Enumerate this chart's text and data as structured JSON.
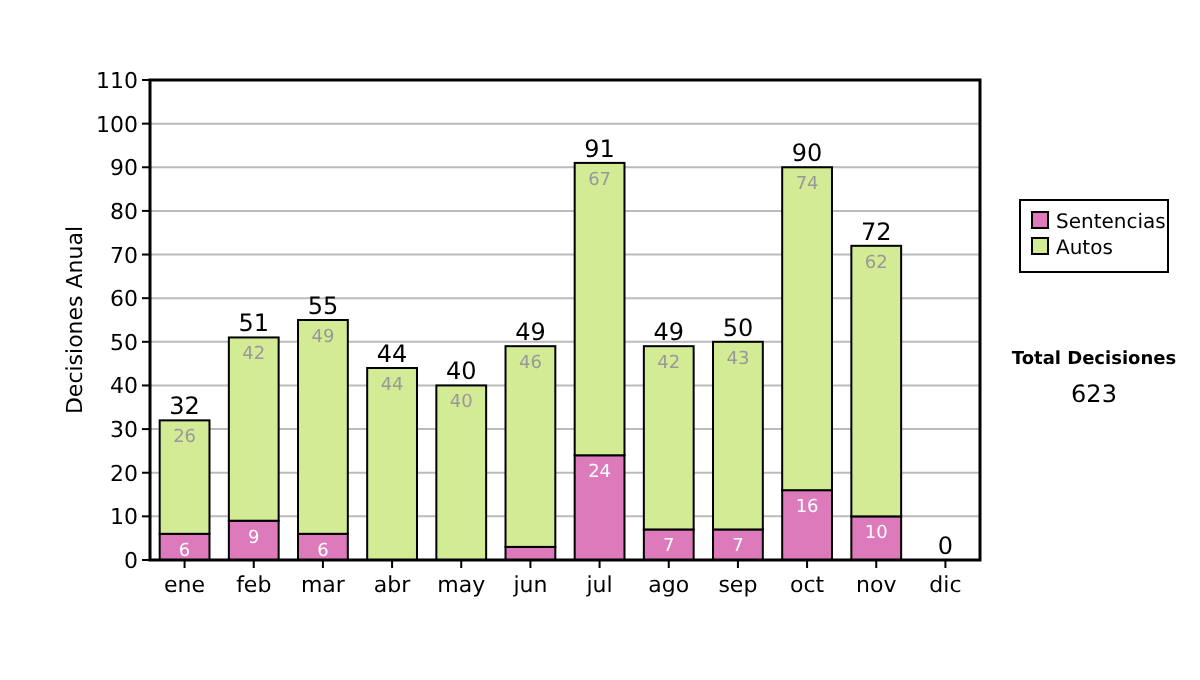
{
  "chart_data": {
    "type": "bar",
    "stacked": true,
    "ylabel": "Decisiones Anual",
    "categories": [
      "ene",
      "feb",
      "mar",
      "abr",
      "may",
      "jun",
      "jul",
      "ago",
      "sep",
      "oct",
      "nov",
      "dic"
    ],
    "series": [
      {
        "name": "Sentencias",
        "color": "#dd7abb",
        "values": [
          6,
          9,
          6,
          0,
          0,
          3,
          24,
          7,
          7,
          16,
          10,
          0
        ],
        "value_labels": [
          "6",
          "9",
          "6",
          null,
          null,
          null,
          "24",
          "7",
          "7",
          "16",
          "10",
          null
        ]
      },
      {
        "name": "Autos",
        "color": "#d3eb95",
        "values": [
          26,
          42,
          49,
          44,
          40,
          46,
          67,
          42,
          43,
          74,
          62,
          0
        ],
        "value_labels": [
          "26",
          "42",
          "49",
          "44",
          "40",
          "46",
          "67",
          "42",
          "43",
          "74",
          "62",
          null
        ]
      }
    ],
    "totals": [
      "32",
      "51",
      "55",
      "44",
      "40",
      "49",
      "91",
      "49",
      "50",
      "90",
      "72",
      "0"
    ],
    "ylim": [
      0,
      110
    ],
    "yticks": [
      0,
      10,
      20,
      30,
      40,
      50,
      60,
      70,
      80,
      90,
      100,
      110
    ],
    "grid": "y",
    "legend": "right",
    "annotations": [
      "Total Decisiones",
      "623"
    ]
  }
}
